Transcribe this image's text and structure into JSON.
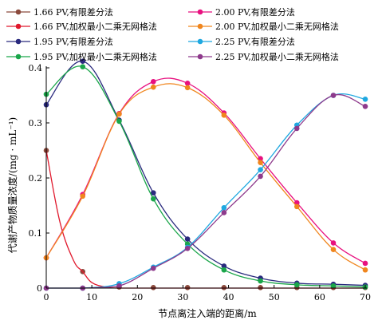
{
  "chart_data": {
    "type": "line",
    "title": "",
    "xlabel": "节点离注入端的距离/m",
    "ylabel": "代谢产物质量浓度/(mg · mL⁻¹)",
    "xlim": [
      0,
      70
    ],
    "ylim": [
      0,
      0.4
    ],
    "xticks": [
      0,
      10,
      20,
      30,
      40,
      50,
      60,
      70
    ],
    "yticks": [
      0,
      0.1,
      0.2,
      0.3,
      0.4
    ],
    "grid": false,
    "legend_position": "top",
    "series": [
      {
        "name": "1.66 PV,有限差分法",
        "color": "#8b4a3c",
        "style": "markers",
        "points": [
          [
            0,
            0.25
          ],
          [
            8,
            0.03
          ],
          [
            16,
            0.002
          ],
          [
            23.5,
            0.001
          ],
          [
            31,
            0.001
          ],
          [
            39,
            0.001
          ],
          [
            47,
            0.001
          ],
          [
            55,
            0.001
          ],
          [
            63,
            0.001
          ],
          [
            70,
            0.001
          ]
        ]
      },
      {
        "name": "1.66 PV,加权最小二乘无网格法",
        "color": "#e0182c",
        "style": "line",
        "points": [
          [
            0,
            0.25
          ],
          [
            3,
            0.12
          ],
          [
            6,
            0.05
          ],
          [
            8,
            0.03
          ],
          [
            10,
            0.01
          ],
          [
            13,
            0.002
          ],
          [
            16,
            0.0
          ],
          [
            23.5,
            0.0
          ],
          [
            31,
            0.0
          ],
          [
            39,
            0.0
          ],
          [
            47,
            0.0
          ],
          [
            55,
            0.0
          ],
          [
            63,
            0.0
          ],
          [
            70,
            0.0
          ]
        ]
      },
      {
        "name": "1.95 PV,有限差分法",
        "color": "#2a2a7e",
        "style": "line+markers",
        "points": [
          [
            0,
            0.333
          ],
          [
            8,
            0.412
          ],
          [
            16,
            0.305
          ],
          [
            23.5,
            0.173
          ],
          [
            31,
            0.089
          ],
          [
            39,
            0.04
          ],
          [
            47,
            0.018
          ],
          [
            55,
            0.009
          ],
          [
            63,
            0.007
          ],
          [
            70,
            0.005
          ]
        ]
      },
      {
        "name": "1.95 PV,加权最小二乘无网格法",
        "color": "#1aa64a",
        "style": "line+markers",
        "points": [
          [
            0,
            0.352
          ],
          [
            8,
            0.402
          ],
          [
            16,
            0.303
          ],
          [
            23.5,
            0.162
          ],
          [
            31,
            0.08
          ],
          [
            39,
            0.033
          ],
          [
            47,
            0.013
          ],
          [
            55,
            0.006
          ],
          [
            63,
            0.004
          ],
          [
            70,
            0.002
          ]
        ]
      },
      {
        "name": "2.00 PV,有限差分法",
        "color": "#e8107f",
        "style": "line+markers",
        "points": [
          [
            0,
            0.055
          ],
          [
            8,
            0.17
          ],
          [
            16,
            0.317
          ],
          [
            23.5,
            0.375
          ],
          [
            31,
            0.372
          ],
          [
            39,
            0.318
          ],
          [
            47,
            0.235
          ],
          [
            55,
            0.155
          ],
          [
            63,
            0.082
          ],
          [
            70,
            0.045
          ]
        ]
      },
      {
        "name": "2.00 PV,加权最小二乘无网格法",
        "color": "#f0861e",
        "style": "line+markers",
        "points": [
          [
            0,
            0.055
          ],
          [
            8,
            0.167
          ],
          [
            16,
            0.316
          ],
          [
            23.5,
            0.365
          ],
          [
            31,
            0.364
          ],
          [
            39,
            0.314
          ],
          [
            47,
            0.228
          ],
          [
            55,
            0.148
          ],
          [
            63,
            0.07
          ],
          [
            70,
            0.033
          ]
        ]
      },
      {
        "name": "2.25 PV,有限差分法",
        "color": "#1fa8e0",
        "style": "line+markers",
        "points": [
          [
            0,
            0.0
          ],
          [
            8,
            0.0
          ],
          [
            16,
            0.008
          ],
          [
            23.5,
            0.038
          ],
          [
            31,
            0.074
          ],
          [
            39,
            0.146
          ],
          [
            47,
            0.215
          ],
          [
            55,
            0.296
          ],
          [
            63,
            0.35
          ],
          [
            70,
            0.343
          ]
        ]
      },
      {
        "name": "2.25 PV,加权最小二乘无网格法",
        "color": "#8e3a8c",
        "style": "line+markers",
        "points": [
          [
            0,
            0.0
          ],
          [
            8,
            0.0
          ],
          [
            16,
            0.004
          ],
          [
            23.5,
            0.036
          ],
          [
            31,
            0.072
          ],
          [
            39,
            0.137
          ],
          [
            47,
            0.203
          ],
          [
            55,
            0.29
          ],
          [
            63,
            0.35
          ],
          [
            70,
            0.33
          ]
        ]
      }
    ]
  }
}
